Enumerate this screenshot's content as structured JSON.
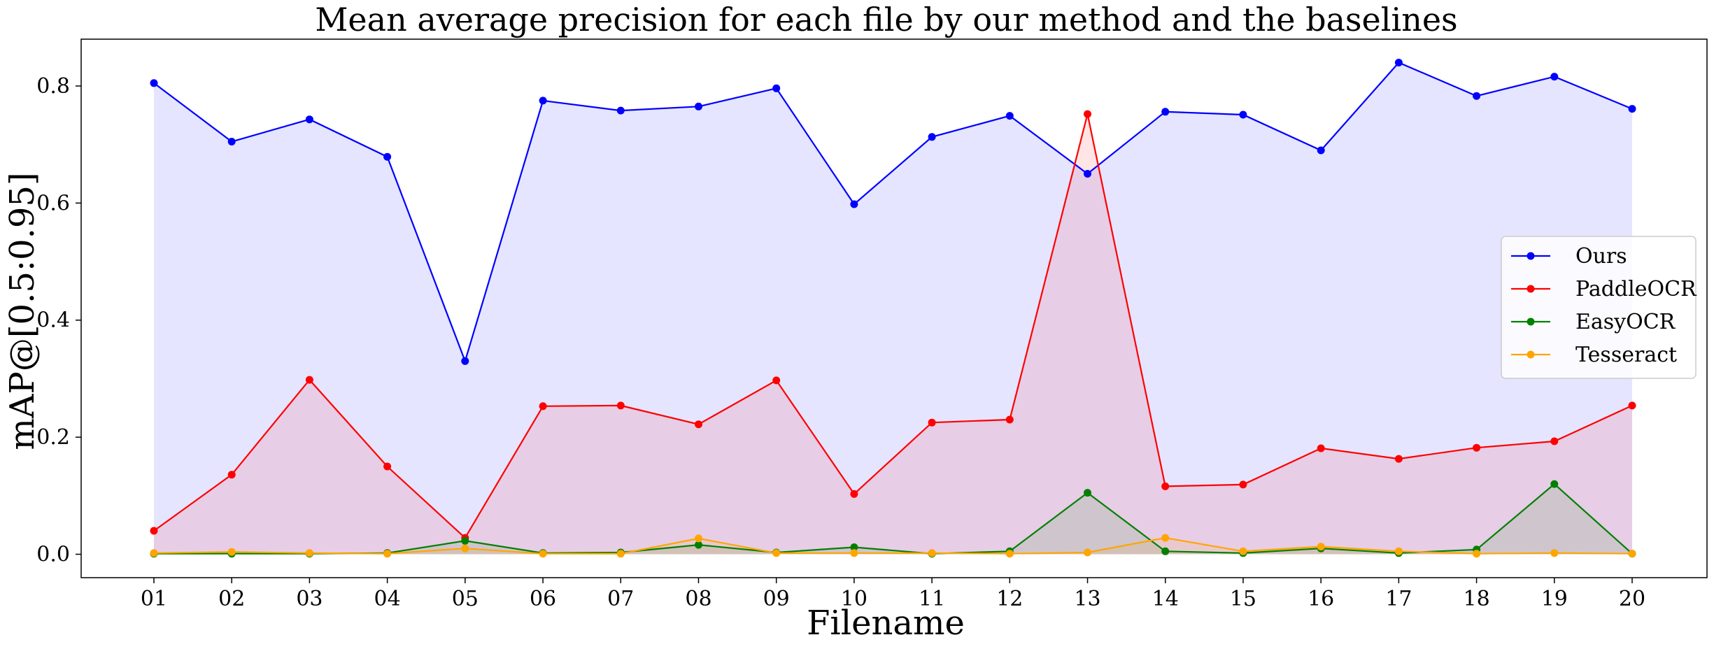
{
  "chart_data": {
    "type": "line",
    "title": "Mean average precision for each file by our method and the baselines",
    "xlabel": "Filename",
    "ylabel": "mAP@[0.5:0.95]",
    "categories": [
      "01",
      "02",
      "03",
      "04",
      "05",
      "06",
      "07",
      "08",
      "09",
      "10",
      "11",
      "12",
      "13",
      "14",
      "15",
      "16",
      "17",
      "18",
      "19",
      "20"
    ],
    "ylim": [
      -0.04,
      0.88
    ],
    "yticks": [
      "0.0",
      "0.2",
      "0.4",
      "0.6",
      "0.8"
    ],
    "ytick_values": [
      0.0,
      0.2,
      0.4,
      0.6,
      0.8
    ],
    "grid": false,
    "legend_position": "center-right",
    "series": [
      {
        "name": "Ours",
        "color": "#0000ff",
        "fill": true,
        "values": [
          0.805,
          0.705,
          0.743,
          0.679,
          0.33,
          0.775,
          0.758,
          0.765,
          0.796,
          0.598,
          0.713,
          0.749,
          0.65,
          0.756,
          0.751,
          0.69,
          0.84,
          0.783,
          0.816,
          0.761
        ]
      },
      {
        "name": "PaddleOCR",
        "color": "#ff0000",
        "fill": true,
        "values": [
          0.04,
          0.136,
          0.298,
          0.15,
          0.028,
          0.253,
          0.254,
          0.222,
          0.297,
          0.103,
          0.225,
          0.23,
          0.752,
          0.116,
          0.119,
          0.181,
          0.163,
          0.182,
          0.193,
          0.254
        ]
      },
      {
        "name": "EasyOCR",
        "color": "#008000",
        "fill": true,
        "values": [
          0.001,
          0.001,
          0.001,
          0.002,
          0.023,
          0.002,
          0.003,
          0.016,
          0.003,
          0.012,
          0.001,
          0.005,
          0.105,
          0.005,
          0.002,
          0.01,
          0.002,
          0.008,
          0.12,
          0.001
        ]
      },
      {
        "name": "Tesseract",
        "color": "#ffa500",
        "fill": true,
        "values": [
          0.002,
          0.004,
          0.002,
          0.001,
          0.01,
          0.001,
          0.001,
          0.027,
          0.002,
          0.002,
          0.002,
          0.001,
          0.003,
          0.028,
          0.005,
          0.013,
          0.005,
          0.001,
          0.002,
          0.001
        ]
      }
    ]
  }
}
